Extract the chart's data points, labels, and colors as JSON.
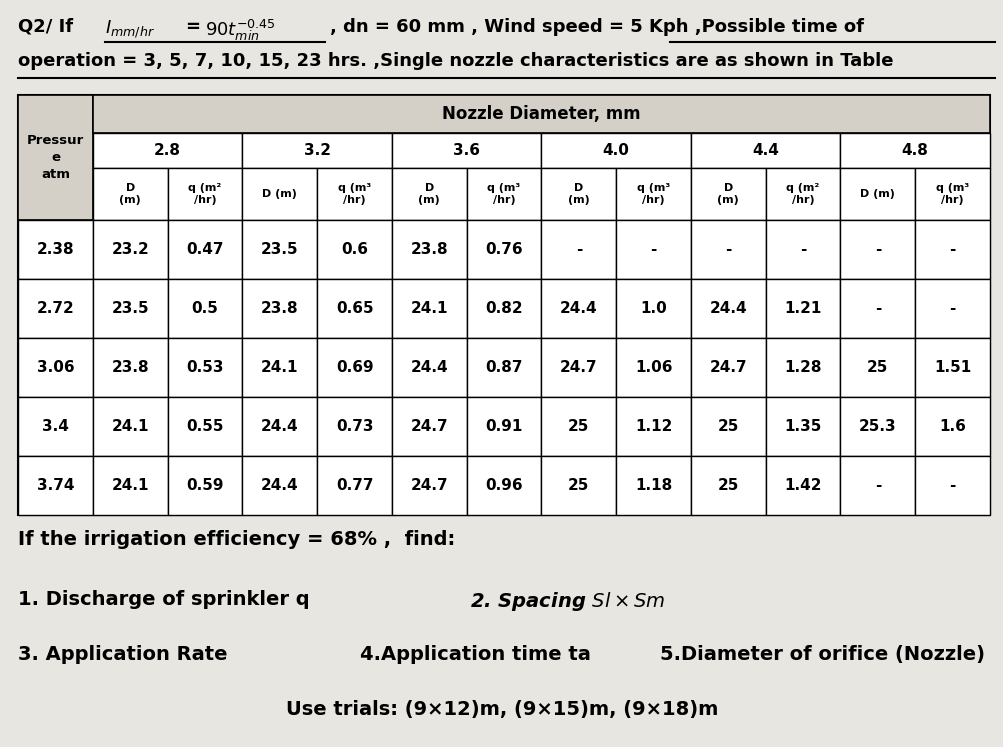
{
  "bg_color": "#e8e6e0",
  "pressures": [
    "2.38",
    "2.72",
    "3.06",
    "3.4",
    "3.74"
  ],
  "nozzle_diameters": [
    "2.8",
    "3.2",
    "3.6",
    "4.0",
    "4.4",
    "4.8"
  ],
  "table_data": [
    [
      "23.2",
      "0.47",
      "23.5",
      "0.6",
      "23.8",
      "0.76",
      "-",
      "-",
      "-",
      "-",
      "-",
      "-"
    ],
    [
      "23.5",
      "0.5",
      "23.8",
      "0.65",
      "24.1",
      "0.82",
      "24.4",
      "1.0",
      "24.4",
      "1.21",
      "-",
      "-"
    ],
    [
      "23.8",
      "0.53",
      "24.1",
      "0.69",
      "24.4",
      "0.87",
      "24.7",
      "1.06",
      "24.7",
      "1.28",
      "25",
      "1.51"
    ],
    [
      "24.1",
      "0.55",
      "24.4",
      "0.73",
      "24.7",
      "0.91",
      "25",
      "1.12",
      "25",
      "1.35",
      "25.3",
      "1.6"
    ],
    [
      "24.1",
      "0.59",
      "24.4",
      "0.77",
      "24.7",
      "0.96",
      "25",
      "1.18",
      "25",
      "1.42",
      "-",
      "-"
    ]
  ],
  "sub_headers_d": [
    "D\n(m)",
    "D (m)",
    "D\n(m)",
    "D\n(m)",
    "D\n(m)",
    "D (m)"
  ],
  "sub_headers_q": [
    "q (m²\n/hr)",
    "q (m³\n/hr",
    "q (m³\n/hr",
    "q (m³\n/hr",
    "q (m²\n/hr",
    "q (m³\n/hr"
  ]
}
